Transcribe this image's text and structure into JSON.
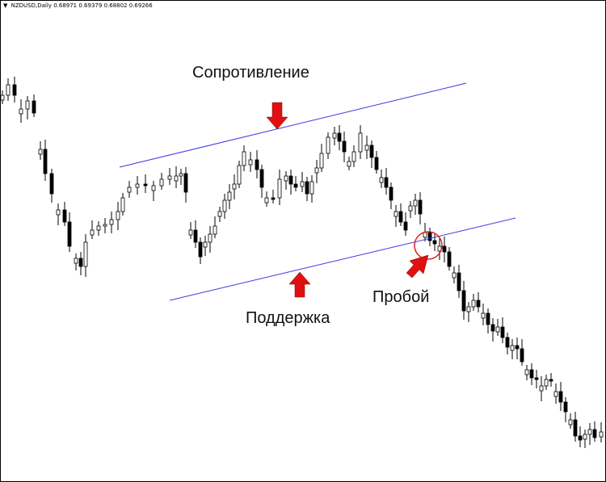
{
  "header": {
    "symbol": "NZDUSD,Daily",
    "open": "0.68971",
    "high": "0.69379",
    "low": "0.68802",
    "close": "0.69266"
  },
  "annotations": {
    "resistance": "Сопротивление",
    "support": "Поддержка",
    "breakout": "Пробой"
  },
  "colors": {
    "channel": "#3a3ae0",
    "arrow": "#e01010",
    "circle": "#e02020",
    "candle": "#000000"
  },
  "chart_data": {
    "type": "candlestick",
    "title": "",
    "grid": false,
    "annotations": [
      "Сопротивление",
      "Поддержка",
      "Пробой"
    ]
  }
}
